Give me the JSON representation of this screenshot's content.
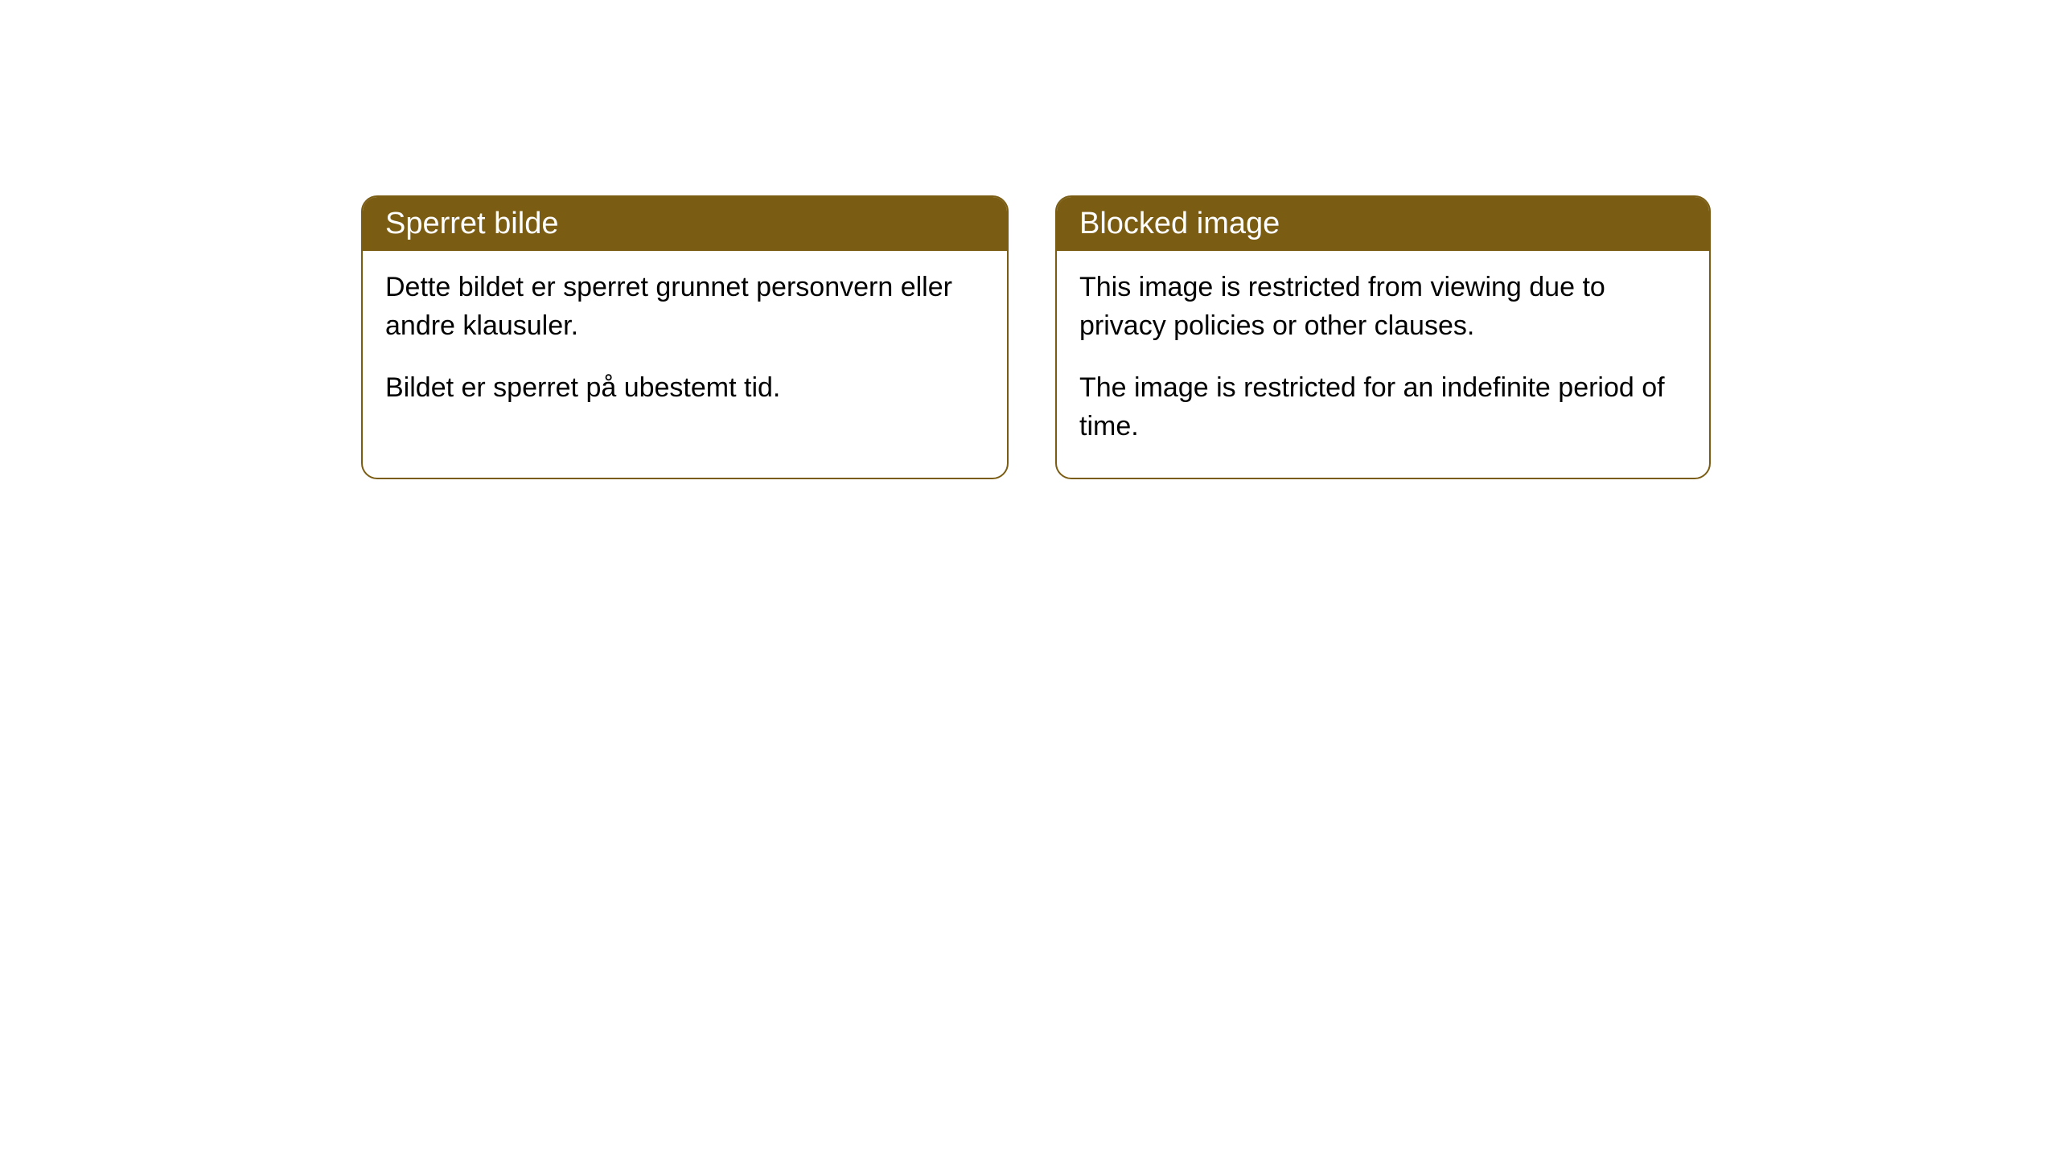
{
  "cards": {
    "left": {
      "title": "Sperret bilde",
      "paragraph1": "Dette bildet er sperret grunnet personvern eller andre klausuler.",
      "paragraph2": "Bildet er sperret på ubestemt tid."
    },
    "right": {
      "title": "Blocked image",
      "paragraph1": "This image is restricted from viewing due to privacy policies or other clauses.",
      "paragraph2": "The image is restricted for an indefinite period of time."
    }
  },
  "styling": {
    "header_bg_color": "#7a5c13",
    "header_text_color": "#ffffff",
    "border_color": "#7a5c13",
    "body_bg_color": "#ffffff",
    "body_text_color": "#000000",
    "border_radius": 20,
    "header_fontsize": 38,
    "body_fontsize": 34
  }
}
